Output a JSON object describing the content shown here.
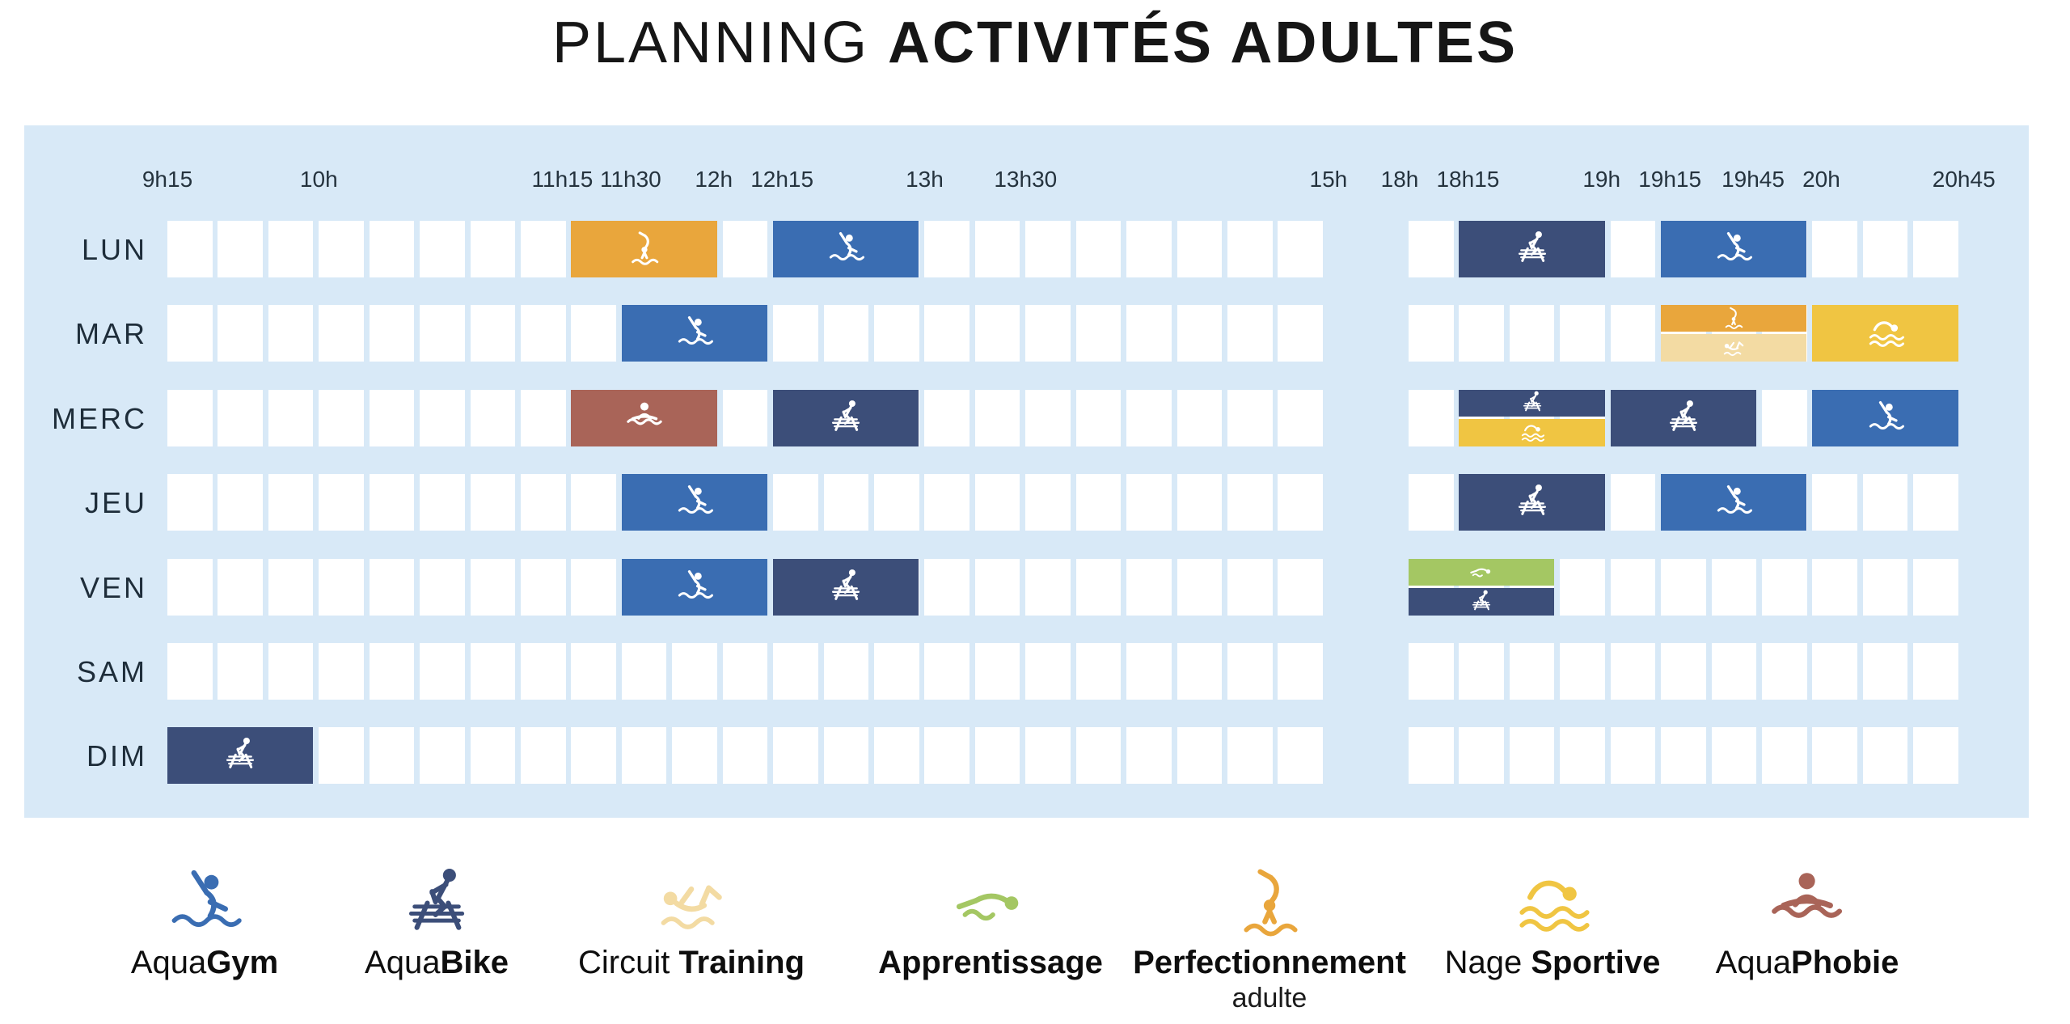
{
  "title": {
    "light": "PLANNING",
    "bold": "ACTIVITÉS ADULTES"
  },
  "colors": {
    "panel_background": "#D8E9F7",
    "cell_background": "#FFFFFF",
    "label_text": "#25333E",
    "title_text": "#161616"
  },
  "chart_data": {
    "type": "table",
    "subtype": "weekly-timetable",
    "title": "PLANNING ACTIVITÉS ADULTES",
    "days": [
      "LUN",
      "MAR",
      "MERC",
      "JEU",
      "VEN",
      "SAM",
      "DIM"
    ],
    "slot_minutes": 15,
    "sections": [
      {
        "start": "9h15",
        "end": "15h",
        "slots": 23,
        "labels": [
          {
            "text": "9h15",
            "slot": 0
          },
          {
            "text": "10h",
            "slot": 3
          },
          {
            "text": "11h15",
            "slot": 8
          },
          {
            "text": "11h30",
            "slot": 9
          },
          {
            "text": "12h",
            "slot": 11
          },
          {
            "text": "12h15",
            "slot": 12
          },
          {
            "text": "13h",
            "slot": 15
          },
          {
            "text": "13h30",
            "slot": 17
          },
          {
            "text": "15h",
            "slot": 23
          }
        ]
      },
      {
        "start": "18h",
        "end": "20h45",
        "slots": 11,
        "labels": [
          {
            "text": "18h",
            "slot": 0
          },
          {
            "text": "18h15",
            "slot": 1
          },
          {
            "text": "19h",
            "slot": 4
          },
          {
            "text": "19h15",
            "slot": 5
          },
          {
            "text": "19h45",
            "slot": 7
          },
          {
            "text": "20h",
            "slot": 8
          },
          {
            "text": "20h45",
            "slot": 11
          }
        ]
      }
    ],
    "activities": {
      "aquagym": {
        "name": "AquaGym",
        "color": "#3A6DB2",
        "icon": "aquagym-icon"
      },
      "aquabike": {
        "name": "AquaBike",
        "color": "#3C4E79",
        "icon": "aquabike-icon"
      },
      "circuit_training": {
        "name": "Circuit Training",
        "color": "#F3DBA3",
        "icon": "circuit-training-icon"
      },
      "apprentissage": {
        "name": "Apprentissage",
        "color": "#A4C763",
        "icon": "apprentissage-icon"
      },
      "perfectionnement": {
        "name": "Perfectionnement adulte",
        "color": "#E9A63C",
        "icon": "perfectionnement-icon"
      },
      "nage_sportive": {
        "name": "Nage Sportive",
        "color": "#F0C542",
        "icon": "nage-sportive-icon"
      },
      "aquaphobie": {
        "name": "AquaPhobie",
        "color": "#A96458",
        "icon": "aquaphobie-icon"
      }
    },
    "blocks": [
      {
        "day": "LUN",
        "section": 0,
        "slot": 8,
        "span": 3,
        "start": "11h15",
        "end": "12h",
        "activities": [
          "perfectionnement"
        ]
      },
      {
        "day": "LUN",
        "section": 0,
        "slot": 12,
        "span": 3,
        "start": "12h15",
        "end": "13h",
        "activities": [
          "aquagym"
        ]
      },
      {
        "day": "LUN",
        "section": 1,
        "slot": 1,
        "span": 3,
        "start": "18h15",
        "end": "19h",
        "activities": [
          "aquabike"
        ]
      },
      {
        "day": "LUN",
        "section": 1,
        "slot": 5,
        "span": 3,
        "start": "19h15",
        "end": "20h",
        "activities": [
          "aquagym"
        ]
      },
      {
        "day": "MAR",
        "section": 0,
        "slot": 9,
        "span": 3,
        "start": "11h30",
        "end": "12h15",
        "activities": [
          "aquagym"
        ]
      },
      {
        "day": "MAR",
        "section": 1,
        "slot": 5,
        "span": 3,
        "start": "19h15",
        "end": "20h",
        "activities": [
          "perfectionnement",
          "circuit_training"
        ]
      },
      {
        "day": "MAR",
        "section": 1,
        "slot": 8,
        "span": 3,
        "start": "20h",
        "end": "20h45",
        "activities": [
          "nage_sportive"
        ]
      },
      {
        "day": "MERC",
        "section": 0,
        "slot": 8,
        "span": 3,
        "start": "11h15",
        "end": "12h",
        "activities": [
          "aquaphobie"
        ]
      },
      {
        "day": "MERC",
        "section": 0,
        "slot": 12,
        "span": 3,
        "start": "12h15",
        "end": "13h",
        "activities": [
          "aquabike"
        ]
      },
      {
        "day": "MERC",
        "section": 1,
        "slot": 1,
        "span": 3,
        "start": "18h15",
        "end": "19h",
        "activities": [
          "aquabike",
          "nage_sportive"
        ]
      },
      {
        "day": "MERC",
        "section": 1,
        "slot": 4,
        "span": 3,
        "start": "19h",
        "end": "19h45",
        "activities": [
          "aquabike"
        ]
      },
      {
        "day": "MERC",
        "section": 1,
        "slot": 8,
        "span": 3,
        "start": "20h",
        "end": "20h45",
        "activities": [
          "aquagym"
        ]
      },
      {
        "day": "JEU",
        "section": 0,
        "slot": 9,
        "span": 3,
        "start": "11h30",
        "end": "12h15",
        "activities": [
          "aquagym"
        ]
      },
      {
        "day": "JEU",
        "section": 1,
        "slot": 1,
        "span": 3,
        "start": "18h15",
        "end": "19h",
        "activities": [
          "aquabike"
        ]
      },
      {
        "day": "JEU",
        "section": 1,
        "slot": 5,
        "span": 3,
        "start": "19h15",
        "end": "20h",
        "activities": [
          "aquagym"
        ]
      },
      {
        "day": "VEN",
        "section": 0,
        "slot": 9,
        "span": 3,
        "start": "11h30",
        "end": "12h15",
        "activities": [
          "aquagym"
        ]
      },
      {
        "day": "VEN",
        "section": 0,
        "slot": 12,
        "span": 3,
        "start": "12h15",
        "end": "13h",
        "activities": [
          "aquabike"
        ]
      },
      {
        "day": "VEN",
        "section": 1,
        "slot": 0,
        "span": 3,
        "start": "18h",
        "end": "18h45",
        "activities": [
          "apprentissage",
          "aquabike"
        ]
      },
      {
        "day": "DIM",
        "section": 0,
        "slot": 0,
        "span": 3,
        "start": "9h15",
        "end": "10h",
        "activities": [
          "aquabike"
        ]
      }
    ]
  },
  "legend": [
    {
      "key": "aquagym",
      "parts": [
        {
          "text": "Aqua",
          "bold": false
        },
        {
          "text": "Gym",
          "bold": true
        }
      ]
    },
    {
      "key": "aquabike",
      "parts": [
        {
          "text": "Aqua",
          "bold": false
        },
        {
          "text": "Bike",
          "bold": true
        }
      ]
    },
    {
      "key": "circuit_training",
      "parts": [
        {
          "text": "Circuit ",
          "bold": false
        },
        {
          "text": "Training",
          "bold": true
        }
      ]
    },
    {
      "key": "apprentissage",
      "parts": [
        {
          "text": "Apprentissage",
          "bold": true
        }
      ]
    },
    {
      "key": "perfectionnement",
      "parts": [
        {
          "text": "Perfectionnement",
          "bold": true
        }
      ],
      "sub": "adulte"
    },
    {
      "key": "nage_sportive",
      "parts": [
        {
          "text": "Nage ",
          "bold": false
        },
        {
          "text": "Sportive",
          "bold": true
        }
      ]
    },
    {
      "key": "aquaphobie",
      "parts": [
        {
          "text": "Aqua",
          "bold": false
        },
        {
          "text": "Phobie",
          "bold": true
        }
      ]
    }
  ]
}
